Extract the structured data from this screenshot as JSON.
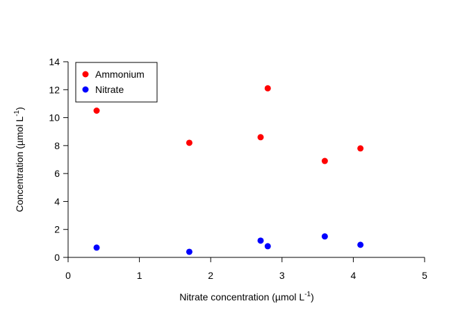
{
  "chart_data": {
    "type": "scatter",
    "title": "",
    "xlabel": "Nitrate concentration (µmol L",
    "xlabel_sup": "-1",
    "xlabel_end": ")",
    "ylabel": "Concentration (µmol L",
    "ylabel_sup": "-1",
    "ylabel_end": ")",
    "xlim": [
      0,
      5
    ],
    "ylim": [
      0,
      14
    ],
    "xticks": [
      0,
      1,
      2,
      3,
      4,
      5
    ],
    "yticks": [
      0,
      2,
      4,
      6,
      8,
      10,
      12,
      14
    ],
    "grid": false,
    "legend_position": "top-left",
    "series": [
      {
        "name": "Ammonium",
        "color": "#ff0000",
        "points": [
          {
            "x": 0.4,
            "y": 10.5
          },
          {
            "x": 1.7,
            "y": 8.2
          },
          {
            "x": 2.7,
            "y": 8.6
          },
          {
            "x": 2.8,
            "y": 12.1
          },
          {
            "x": 3.6,
            "y": 6.9
          },
          {
            "x": 4.1,
            "y": 7.8
          }
        ]
      },
      {
        "name": "Nitrate",
        "color": "#0000ff",
        "points": [
          {
            "x": 0.4,
            "y": 0.7
          },
          {
            "x": 1.7,
            "y": 0.4
          },
          {
            "x": 2.7,
            "y": 1.2
          },
          {
            "x": 2.8,
            "y": 0.8
          },
          {
            "x": 3.6,
            "y": 1.5
          },
          {
            "x": 4.1,
            "y": 0.9
          }
        ]
      }
    ]
  }
}
